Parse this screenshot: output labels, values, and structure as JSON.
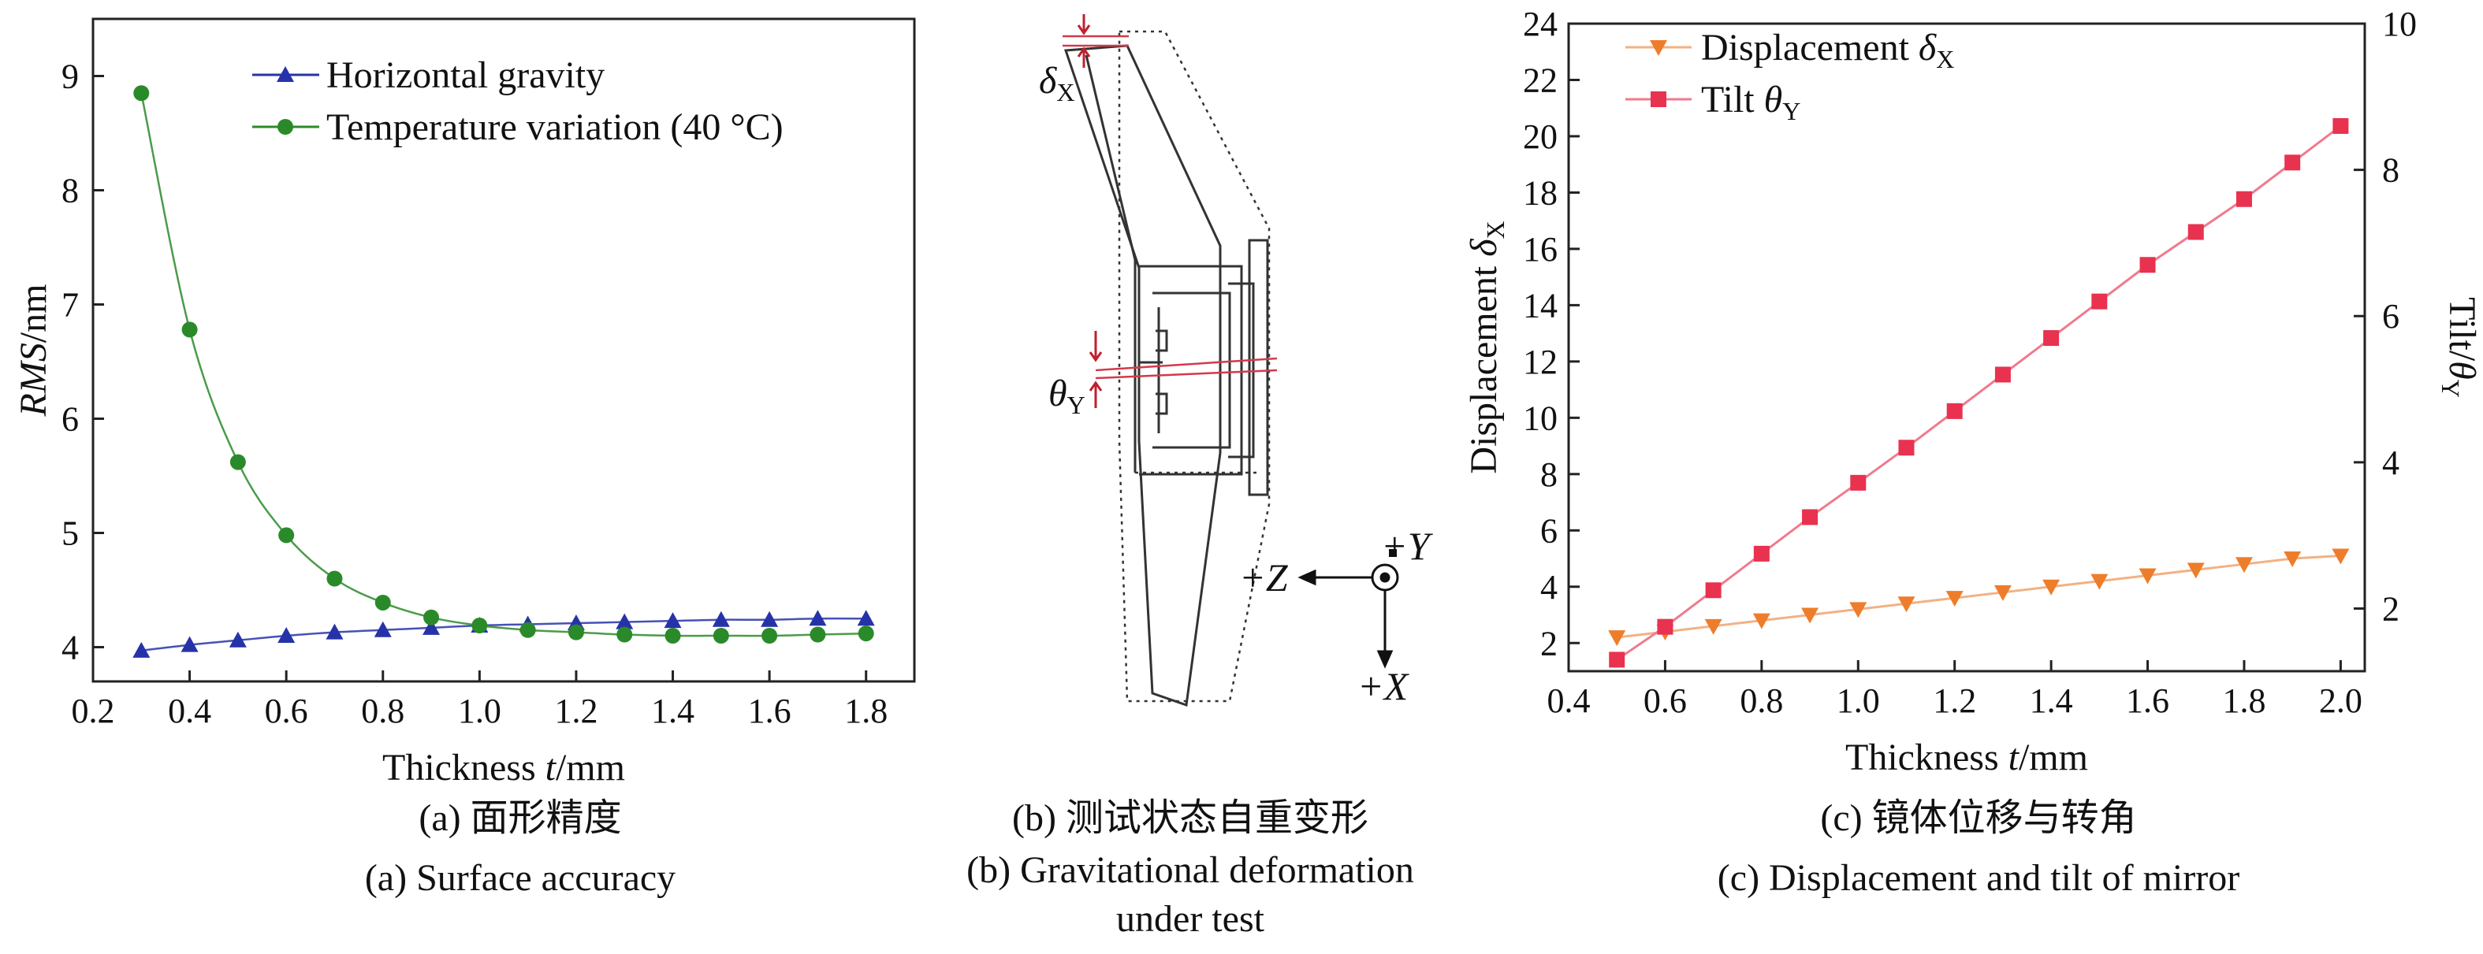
{
  "chart_data": [
    {
      "type": "line",
      "ylabel_italic": "RMS",
      "ylabel_rest": "/nm",
      "xlabel_pre": "Thickness ",
      "xlabel_italic": "t",
      "xlabel_post": "/mm",
      "xlim": [
        0.2,
        1.9
      ],
      "ylim": [
        3.7,
        9.5
      ],
      "xticks": [
        "0.2",
        "0.4",
        "0.6",
        "0.8",
        "1.0",
        "1.2",
        "1.4",
        "1.6",
        "1.8"
      ],
      "yticks": [
        "4",
        "5",
        "6",
        "7",
        "8",
        "9"
      ],
      "legend_position": "top-right",
      "series": [
        {
          "name": "Horizontal gravity",
          "color": "#2633a8",
          "marker": "triangle",
          "x": [
            0.3,
            0.4,
            0.5,
            0.6,
            0.7,
            0.8,
            0.9,
            1.0,
            1.1,
            1.2,
            1.3,
            1.4,
            1.5,
            1.6,
            1.7,
            1.8
          ],
          "y": [
            3.97,
            4.02,
            4.06,
            4.1,
            4.13,
            4.15,
            4.17,
            4.19,
            4.2,
            4.21,
            4.22,
            4.23,
            4.24,
            4.24,
            4.25,
            4.25
          ]
        },
        {
          "name": "Temperature variation (40 °C)",
          "color": "#2a8a2a",
          "marker": "circle",
          "x": [
            0.3,
            0.4,
            0.5,
            0.6,
            0.7,
            0.8,
            0.9,
            1.0,
            1.1,
            1.2,
            1.3,
            1.4,
            1.5,
            1.6,
            1.7,
            1.8
          ],
          "y": [
            8.85,
            6.78,
            5.62,
            4.98,
            4.6,
            4.39,
            4.26,
            4.19,
            4.15,
            4.13,
            4.11,
            4.1,
            4.1,
            4.1,
            4.11,
            4.12
          ]
        }
      ]
    },
    {
      "type": "line",
      "xlabel_pre": "Thickness ",
      "xlabel_italic": "t",
      "xlabel_post": "/mm",
      "ylabel_pre": "Displacement ",
      "ylabel_italic": "δ",
      "ylabel_sub": "X",
      "y2label_pre": "Tilt/",
      "y2label_italic": "θ",
      "y2label_sub": "Y",
      "xlim": [
        0.4,
        2.05
      ],
      "ylim": [
        1,
        24
      ],
      "y2lim": [
        1.143,
        10
      ],
      "xticks": [
        "0.4",
        "0.6",
        "0.8",
        "1.0",
        "1.2",
        "1.4",
        "1.6",
        "1.8",
        "2.0"
      ],
      "yticks": [
        "2",
        "4",
        "6",
        "8",
        "10",
        "12",
        "14",
        "16",
        "18",
        "20",
        "22",
        "24"
      ],
      "y2ticks": [
        "2",
        "4",
        "6",
        "8",
        "10"
      ],
      "legend_position": "top-left",
      "series": [
        {
          "name_pre": "Displacement ",
          "name_italic": "δ",
          "name_sub": "X",
          "color": "#ee7d2b",
          "line_color": "#f2b184",
          "marker": "triangle-down",
          "axis": "left",
          "x": [
            0.5,
            0.6,
            0.7,
            0.8,
            0.9,
            1.0,
            1.1,
            1.2,
            1.3,
            1.4,
            1.5,
            1.6,
            1.7,
            1.8,
            1.9,
            2.0
          ],
          "y": [
            2.2,
            2.4,
            2.6,
            2.8,
            3.0,
            3.2,
            3.4,
            3.6,
            3.8,
            4.0,
            4.2,
            4.4,
            4.6,
            4.8,
            5.0,
            5.1
          ]
        },
        {
          "name_pre": "Tilt ",
          "name_italic": "θ",
          "name_sub": "Y",
          "color": "#e8324f",
          "line_color": "#f07a8c",
          "marker": "square",
          "axis": "right",
          "x": [
            0.5,
            0.6,
            0.7,
            0.8,
            0.9,
            1.0,
            1.1,
            1.2,
            1.3,
            1.4,
            1.5,
            1.6,
            1.7,
            1.8,
            1.9,
            2.0
          ],
          "y": [
            1.3,
            1.75,
            2.25,
            2.75,
            3.25,
            3.72,
            4.2,
            4.7,
            5.2,
            5.7,
            6.2,
            6.7,
            7.15,
            7.6,
            8.1,
            8.6
          ]
        }
      ]
    }
  ],
  "diagram": {
    "delta_label": "δ",
    "delta_sub": "X",
    "theta_label": "θ",
    "theta_sub": "Y",
    "axis_z": "+Z",
    "axis_y": "+Y",
    "axis_x": "+X"
  },
  "captions": {
    "a_cn": "(a) 面形精度",
    "a_en": "(a) Surface accuracy",
    "b_cn": "(b) 测试状态自重变形",
    "b_en1": "(b) Gravitational deformation",
    "b_en2": "under test",
    "c_cn": "(c) 镜体位移与转角",
    "c_en": "(c) Displacement and tilt of mirror"
  }
}
